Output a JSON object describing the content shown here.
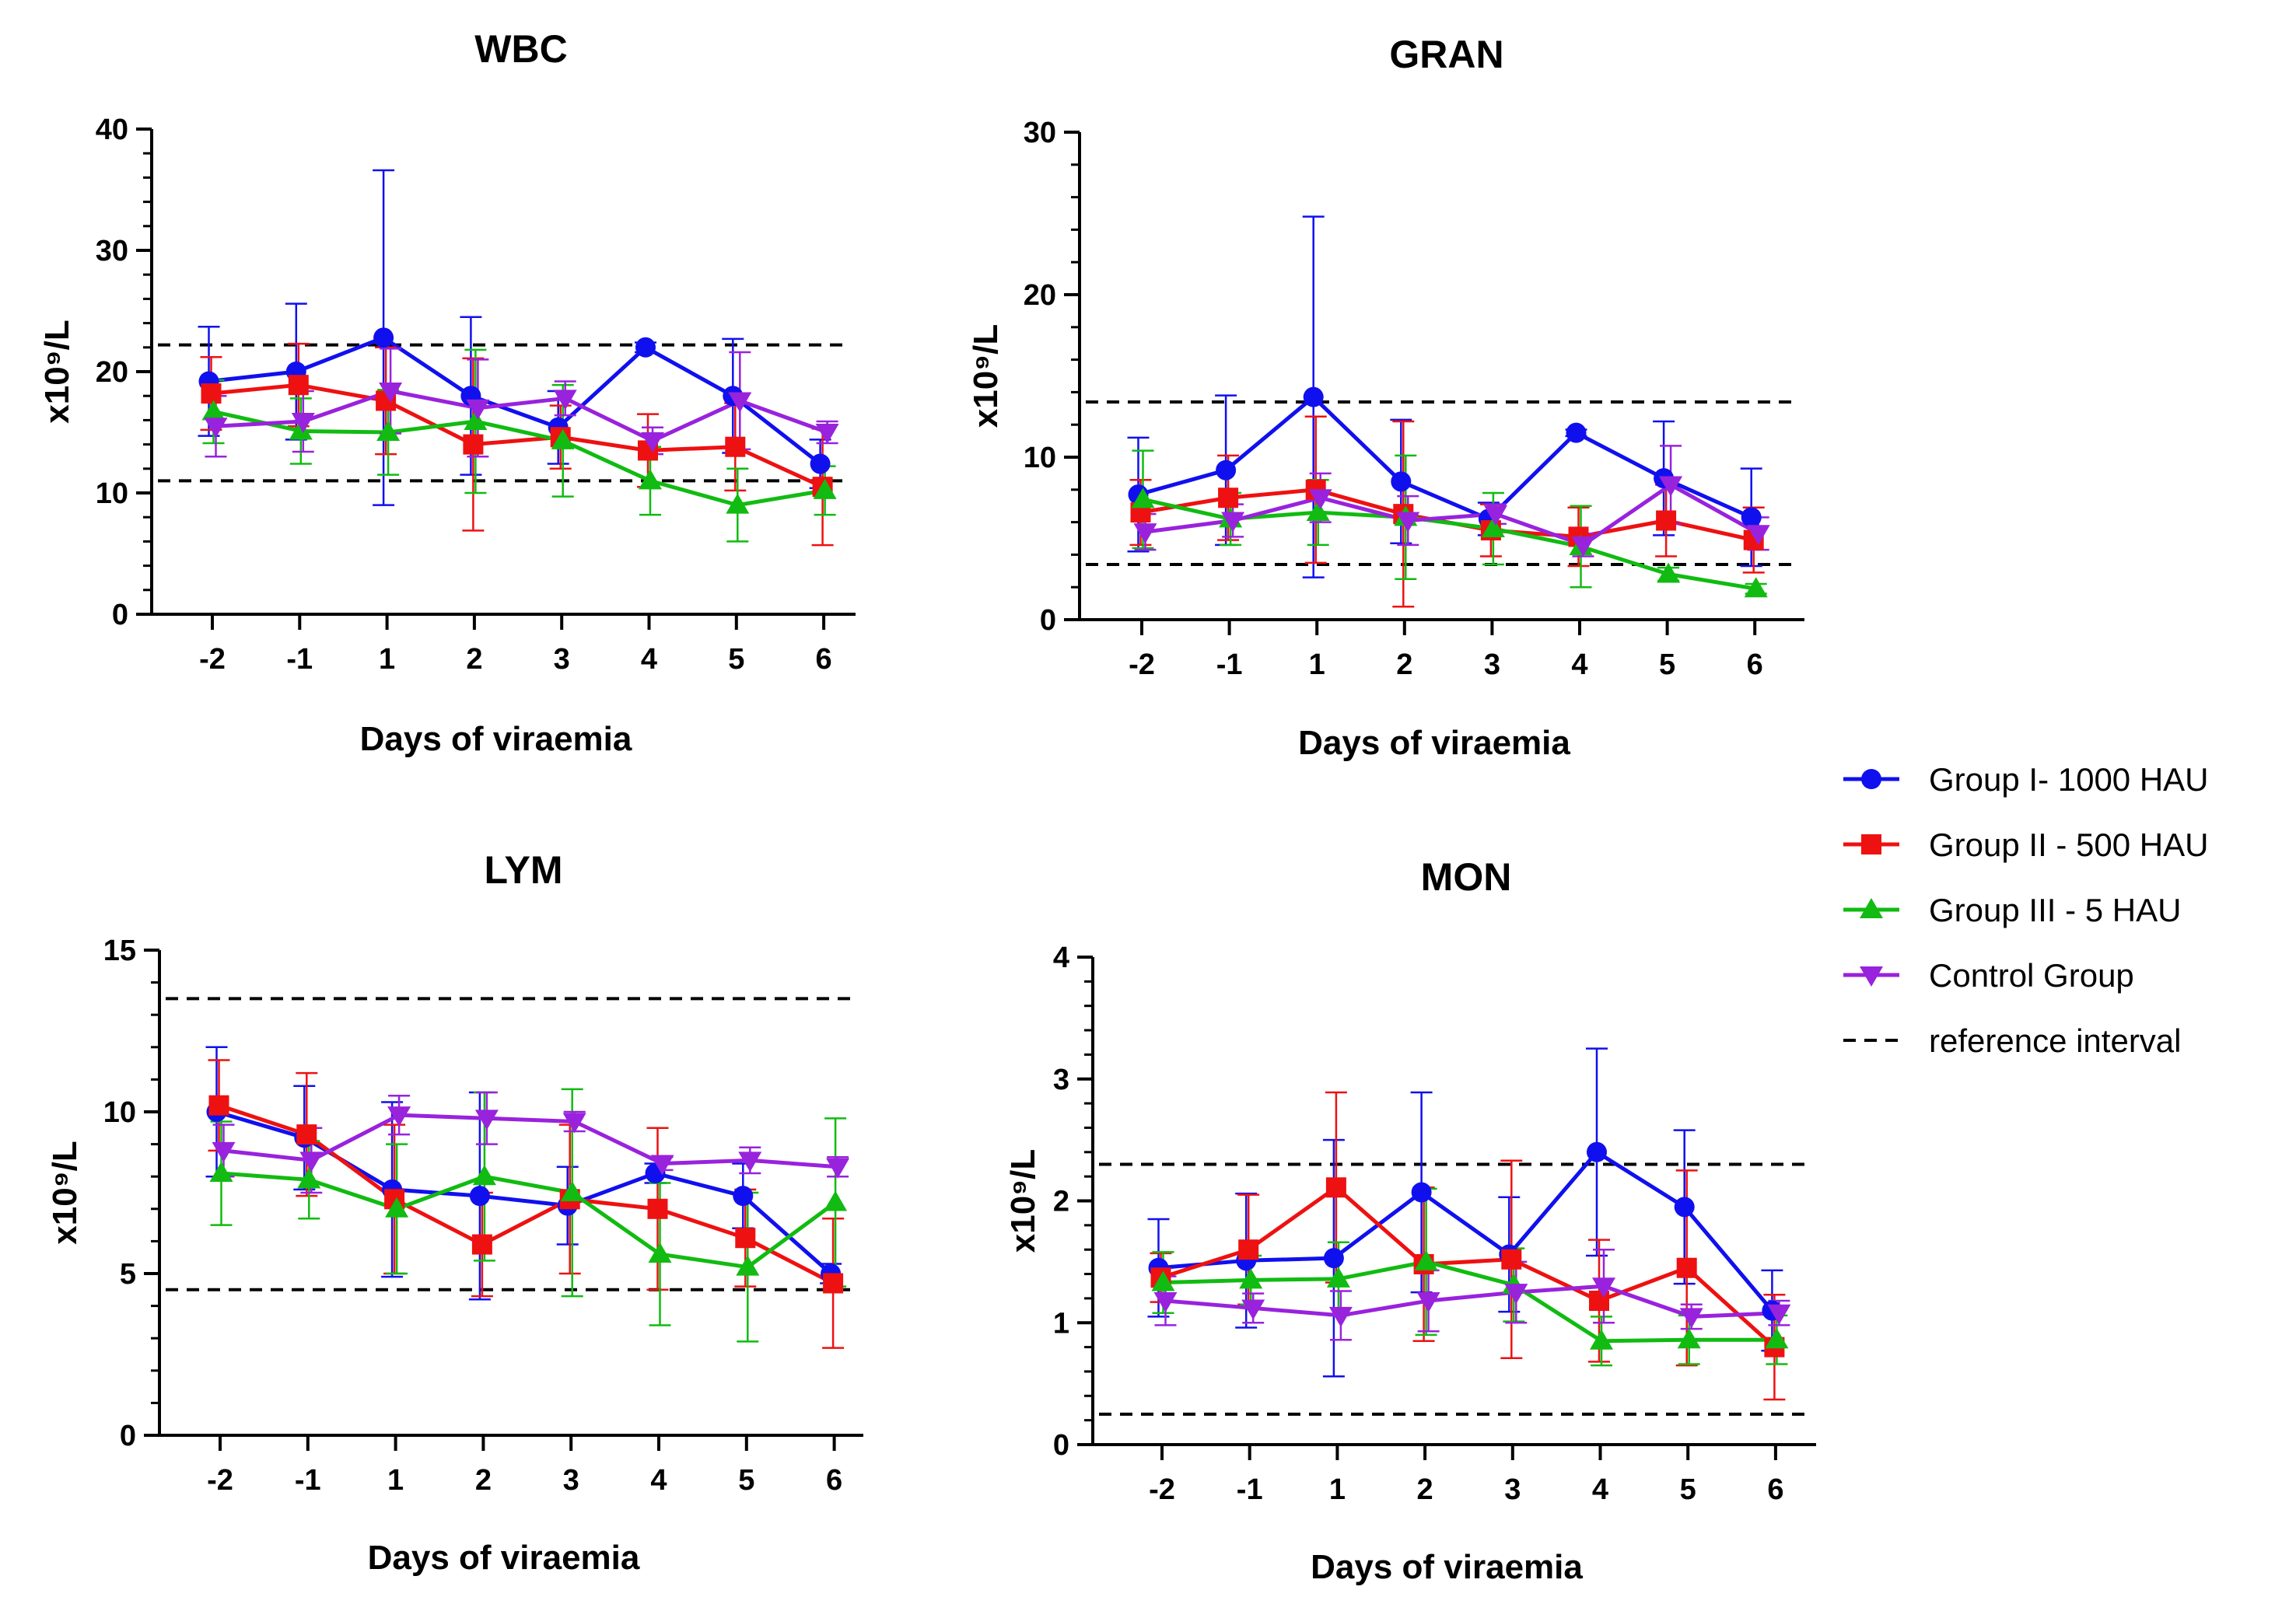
{
  "chart_data": {
    "type": "line",
    "legend": {
      "placement": "right",
      "entries": [
        {
          "label": "Group I- 1000 HAU",
          "color": "#1010ee",
          "marker": "circle"
        },
        {
          "label": "Group II - 500 HAU",
          "color": "#ee1111",
          "marker": "square"
        },
        {
          "label": "Group III - 5 HAU",
          "color": "#11bb11",
          "marker": "triangle-up"
        },
        {
          "label": "Control Group",
          "color": "#9922dd",
          "marker": "triangle-down"
        },
        {
          "label": "reference interval",
          "color": "#000000",
          "marker": "dashed-line"
        }
      ]
    },
    "panels": [
      {
        "title": "WBC",
        "xlabel": "Days of viraemia",
        "ylabel": "x10⁹/L",
        "categories": [
          "-2",
          "-1",
          "1",
          "2",
          "3",
          "4",
          "5",
          "6"
        ],
        "ylim": [
          0,
          40
        ],
        "yticks": [
          "0",
          "10",
          "20",
          "30",
          "40"
        ],
        "minor_per_major": 5,
        "reference_lines": [
          11,
          22.2
        ],
        "series": [
          {
            "name": "Group I- 1000 HAU",
            "values": [
              19.2,
              20.0,
              22.8,
              18.0,
              15.4,
              22.0,
              18.0,
              12.4
            ],
            "err": [
              4.5,
              5.6,
              13.8,
              6.5,
              3.0,
              0.4,
              4.7,
              2.0
            ]
          },
          {
            "name": "Group II - 500 HAU",
            "values": [
              18.2,
              18.9,
              17.6,
              14.0,
              14.6,
              13.5,
              13.8,
              10.5
            ],
            "err": [
              3.0,
              3.4,
              4.4,
              7.1,
              2.6,
              3.0,
              3.6,
              4.8
            ]
          },
          {
            "name": "Group III - 5 HAU",
            "values": [
              16.7,
              15.1,
              15.0,
              15.9,
              14.3,
              11.0,
              9.0,
              10.2
            ],
            "err": [
              2.6,
              2.7,
              3.5,
              5.9,
              4.6,
              2.8,
              3.0,
              2.0
            ]
          },
          {
            "name": "Control Group",
            "values": [
              15.5,
              15.9,
              18.4,
              17.0,
              17.8,
              14.3,
              17.6,
              15.0
            ],
            "err": [
              2.5,
              2.5,
              3.5,
              4.0,
              1.4,
              1.1,
              4.0,
              0.9
            ]
          }
        ]
      },
      {
        "title": "GRAN",
        "xlabel": "Days of viraemia",
        "ylabel": "x10⁹/L",
        "categories": [
          "-2",
          "-1",
          "1",
          "2",
          "3",
          "4",
          "5",
          "6"
        ],
        "ylim": [
          0,
          30
        ],
        "yticks": [
          "0",
          "10",
          "20",
          "30"
        ],
        "minor_per_major": 5,
        "reference_lines": [
          3.4,
          13.4
        ],
        "series": [
          {
            "name": "Group I- 1000 HAU",
            "values": [
              7.7,
              9.2,
              13.7,
              8.5,
              6.2,
              11.5,
              8.7,
              6.3
            ],
            "err": [
              3.5,
              4.6,
              11.1,
              3.8,
              1.0,
              0.2,
              3.5,
              3.0
            ]
          },
          {
            "name": "Group II - 500 HAU",
            "values": [
              6.6,
              7.5,
              8.0,
              6.5,
              5.5,
              5.1,
              6.1,
              4.9
            ],
            "err": [
              2.0,
              2.6,
              4.5,
              5.7,
              1.6,
              1.8,
              2.2,
              2.0
            ]
          },
          {
            "name": "Group III - 5 HAU",
            "values": [
              7.4,
              6.2,
              6.6,
              6.3,
              5.6,
              4.5,
              2.8,
              1.9
            ],
            "err": [
              3.0,
              1.6,
              2.0,
              3.8,
              2.2,
              2.5,
              0.4,
              0.3
            ]
          },
          {
            "name": "Control Group",
            "values": [
              5.4,
              6.1,
              7.5,
              6.1,
              6.5,
              4.6,
              8.3,
              5.3
            ],
            "err": [
              1.1,
              1.0,
              1.5,
              1.5,
              0.6,
              0.7,
              2.4,
              1.0
            ]
          }
        ]
      },
      {
        "title": "LYM",
        "xlabel": "Days of viraemia",
        "ylabel": "x10⁹/L",
        "categories": [
          "-2",
          "-1",
          "1",
          "2",
          "3",
          "4",
          "5",
          "6"
        ],
        "ylim": [
          0,
          15
        ],
        "yticks": [
          "0",
          "5",
          "10",
          "15"
        ],
        "minor_per_major": 5,
        "reference_lines": [
          4.5,
          13.5
        ],
        "series": [
          {
            "name": "Group I- 1000 HAU",
            "values": [
              10.0,
              9.2,
              7.6,
              7.4,
              7.1,
              8.1,
              7.4,
              5.0
            ],
            "err": [
              2.0,
              1.6,
              2.7,
              3.2,
              1.2,
              0.3,
              1.0,
              0.3
            ]
          },
          {
            "name": "Group II - 500 HAU",
            "values": [
              10.2,
              9.3,
              7.3,
              5.9,
              7.3,
              7.0,
              6.1,
              4.7
            ],
            "err": [
              1.4,
              1.9,
              2.3,
              1.6,
              2.3,
              2.5,
              1.5,
              2.0
            ]
          },
          {
            "name": "Group III - 5 HAU",
            "values": [
              8.1,
              7.9,
              7.0,
              8.0,
              7.5,
              5.6,
              5.2,
              7.2
            ],
            "err": [
              1.6,
              1.2,
              2.0,
              2.6,
              3.2,
              2.2,
              2.3,
              2.6
            ]
          },
          {
            "name": "Control Group",
            "values": [
              8.8,
              8.5,
              9.9,
              9.8,
              9.7,
              8.4,
              8.5,
              8.3
            ],
            "err": [
              0.8,
              1.0,
              0.6,
              0.8,
              0.3,
              0.2,
              0.4,
              0.3
            ]
          }
        ]
      },
      {
        "title": "MON",
        "xlabel": "Days of viraemia",
        "ylabel": "x10⁹/L",
        "categories": [
          "-2",
          "-1",
          "1",
          "2",
          "3",
          "4",
          "5",
          "6"
        ],
        "ylim": [
          0,
          4
        ],
        "yticks": [
          "0",
          "1",
          "2",
          "3",
          "4"
        ],
        "minor_per_major": 5,
        "reference_lines": [
          0.25,
          2.3
        ],
        "series": [
          {
            "name": "Group I- 1000 HAU",
            "values": [
              1.45,
              1.51,
              1.53,
              2.07,
              1.56,
              2.4,
              1.95,
              1.1
            ],
            "err": [
              0.4,
              0.55,
              0.97,
              0.82,
              0.47,
              0.85,
              0.63,
              0.33
            ]
          },
          {
            "name": "Group II - 500 HAU",
            "values": [
              1.37,
              1.6,
              2.11,
              1.48,
              1.52,
              1.18,
              1.45,
              0.8
            ],
            "err": [
              0.2,
              0.45,
              0.78,
              0.63,
              0.81,
              0.5,
              0.8,
              0.43
            ]
          },
          {
            "name": "Group III - 5 HAU",
            "values": [
              1.33,
              1.35,
              1.36,
              1.5,
              1.31,
              0.85,
              0.86,
              0.86
            ],
            "err": [
              0.25,
              0.2,
              0.3,
              0.6,
              0.3,
              0.2,
              0.2,
              0.2
            ]
          },
          {
            "name": "Control Group",
            "values": [
              1.18,
              1.12,
              1.06,
              1.18,
              1.25,
              1.3,
              1.05,
              1.08
            ],
            "err": [
              0.2,
              0.12,
              0.2,
              0.25,
              0.25,
              0.3,
              0.1,
              0.1
            ]
          }
        ]
      }
    ]
  }
}
